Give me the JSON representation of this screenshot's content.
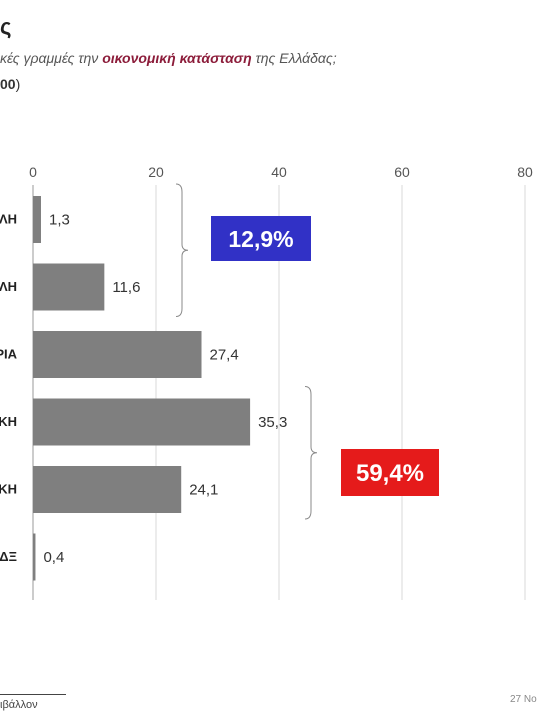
{
  "header": {
    "title": "ς",
    "question_before": "κές γραμμές την ",
    "question_highlight": "οικονομική κατάσταση",
    "question_after": " της Ελλάδας;",
    "base_bold": "00",
    "base_close": ")"
  },
  "chart_data": {
    "type": "bar",
    "orientation": "horizontal",
    "categories": [
      "ΛΗ",
      "ΛΗ",
      "ΡΙΑ",
      "ΚΗ",
      "ΚΗ",
      "ΔΞ"
    ],
    "values": [
      1.3,
      11.6,
      27.4,
      35.3,
      24.1,
      0.4
    ],
    "value_labels": [
      "1,3",
      "11,6",
      "27,4",
      "35,3",
      "24,1",
      "0,4"
    ],
    "xlim": [
      0,
      80
    ],
    "xticks": [
      "0",
      "20",
      "40",
      "60",
      "80"
    ],
    "grid": true,
    "bar_color": "#7f7f7f",
    "annotations": [
      {
        "label": "12,9%",
        "from": 0,
        "to": 1,
        "color": "#3131c6"
      },
      {
        "label": "59,4%",
        "from": 3,
        "to": 4,
        "color": "#e51b1b"
      }
    ]
  },
  "footer": {
    "left": "ιβάλλον",
    "right": "27 Νο"
  }
}
